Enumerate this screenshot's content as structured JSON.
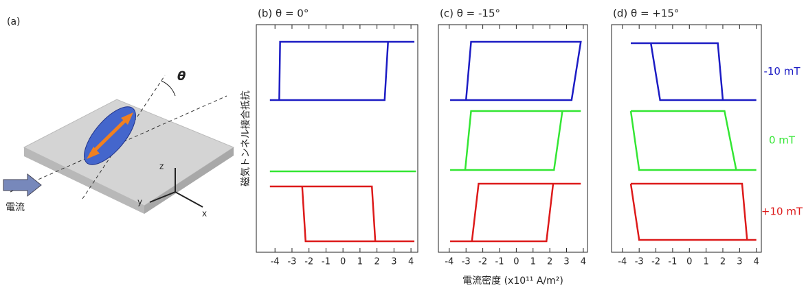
{
  "schematic": {
    "label": "(a)",
    "angle": "θ",
    "axes": [
      "z",
      "y",
      "x"
    ],
    "current": "電流"
  },
  "chart_data": [
    {
      "type": "line",
      "title": "(b) θ = 0°",
      "ylabel": "磁気トンネル接合抵抗",
      "xlim": [
        -5.1,
        4.4
      ],
      "xticks": [
        -4,
        -3,
        -2,
        -1,
        0,
        1,
        2,
        3,
        4
      ],
      "ylim": [
        0,
        33.2
      ],
      "series": [
        {
          "color": "#1c1cc4",
          "x": [
            -4.3,
            2.45,
            2.65,
            4.2,
            -3.7,
            -3.75
          ],
          "values": [
            22.2,
            22.2,
            30.7,
            30.7,
            30.7,
            22.2
          ]
        },
        {
          "color": "#33e633",
          "x": [
            -4.3,
            4.3
          ],
          "values": [
            11.8,
            11.8
          ]
        },
        {
          "color": "#dd1a1a",
          "x": [
            -4.3,
            -2.4,
            -2.2,
            4.2,
            1.9,
            1.7,
            -2.4
          ],
          "values": [
            9.6,
            9.6,
            1.6,
            1.6,
            1.6,
            9.6,
            9.6
          ]
        }
      ]
    },
    {
      "type": "line",
      "title": "(c) θ = -15°",
      "xlabel": "電流密度 (x10¹¹ A/m²)",
      "xlim": [
        -4.65,
        4.25
      ],
      "xticks": [
        -4,
        -3,
        -2,
        -1,
        0,
        1,
        2,
        3,
        4
      ],
      "ylim": [
        0,
        33.2
      ],
      "series": [
        {
          "color": "#1c1cc4",
          "x": [
            -3.95,
            3.3,
            3.85,
            -2.7,
            -3.0
          ],
          "values": [
            22.2,
            22.2,
            30.7,
            30.7,
            22.2
          ]
        },
        {
          "color": "#33e633",
          "x": [
            -3.95,
            2.25,
            2.75,
            3.85,
            -2.7,
            -3.05
          ],
          "values": [
            12.0,
            12.0,
            20.6,
            20.6,
            20.6,
            12.0
          ]
        },
        {
          "color": "#dd1a1a",
          "x": [
            -3.95,
            1.8,
            2.2,
            3.85,
            -2.25,
            -2.65
          ],
          "values": [
            1.6,
            1.6,
            10.0,
            10.0,
            10.0,
            1.6
          ]
        }
      ]
    },
    {
      "type": "line",
      "title": "(d) θ = +15°",
      "xlim": [
        -4.65,
        4.3
      ],
      "xticks": [
        -4,
        -3,
        -2,
        -1,
        0,
        1,
        2,
        3,
        4
      ],
      "ylim": [
        0,
        33.2
      ],
      "series": [
        {
          "name": "-10 mT",
          "color": "#1c1cc4",
          "x": [
            -3.5,
            1.7,
            2.0,
            4.0,
            -1.75,
            -2.3
          ],
          "values": [
            30.5,
            30.5,
            22.2,
            22.2,
            22.2,
            30.5
          ]
        },
        {
          "name": "0 mT",
          "color": "#33e633",
          "x": [
            -3.5,
            2.1,
            2.8,
            4.0,
            -3.0,
            -3.5
          ],
          "values": [
            20.6,
            20.6,
            12.0,
            12.0,
            12.0,
            20.6
          ]
        },
        {
          "name": "+10 mT",
          "color": "#dd1a1a",
          "x": [
            -3.5,
            3.15,
            3.45,
            4.0,
            -3.0,
            -3.5
          ],
          "values": [
            10.0,
            10.0,
            1.8,
            1.8,
            1.8,
            10.0
          ]
        }
      ]
    }
  ]
}
